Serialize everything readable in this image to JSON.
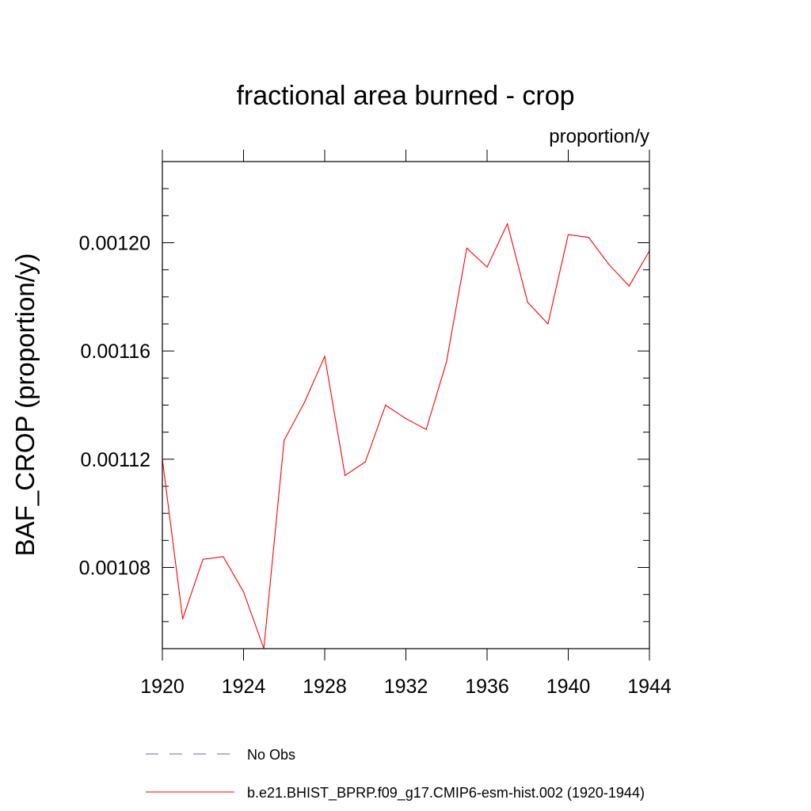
{
  "chart_data": {
    "type": "line",
    "title": "fractional area burned - crop",
    "units_label": "proportion/y",
    "ylabel": "BAF_CROP  (proportion/y)",
    "xlabel": "",
    "xlim": [
      1920,
      1944
    ],
    "ylim": [
      0.00105,
      0.00123
    ],
    "x_ticks": [
      1920,
      1924,
      1928,
      1932,
      1936,
      1940,
      1944
    ],
    "x_tick_labels": [
      "1920",
      "1924",
      "1928",
      "1932",
      "1936",
      "1940",
      "1944"
    ],
    "y_ticks": [
      0.00108,
      0.00112,
      0.00116,
      0.0012
    ],
    "y_tick_labels": [
      "0.00108",
      "0.00112",
      "0.00116",
      "0.00120"
    ],
    "series": [
      {
        "name": "b.e21.BHIST_BPRP.f09_g17.CMIP6-esm-hist.002 (1920-1944)",
        "color": "#ff0000",
        "dash": "solid",
        "x": [
          1920,
          1921,
          1922,
          1923,
          1924,
          1925,
          1926,
          1927,
          1928,
          1929,
          1930,
          1931,
          1932,
          1933,
          1934,
          1935,
          1936,
          1937,
          1938,
          1939,
          1940,
          1941,
          1942,
          1943,
          1944
        ],
        "values": [
          0.00112,
          0.001061,
          0.001083,
          0.001084,
          0.001071,
          0.00105,
          0.001127,
          0.001141,
          0.001158,
          0.001114,
          0.001119,
          0.00114,
          0.001135,
          0.001131,
          0.001156,
          0.001198,
          0.001191,
          0.001207,
          0.001178,
          0.00117,
          0.001203,
          0.001202,
          0.001192,
          0.001184,
          0.001197
        ]
      }
    ],
    "legend": [
      {
        "label": "No Obs",
        "color": "#6666cc",
        "dash": "dashed"
      },
      {
        "label": "b.e21.BHIST_BPRP.f09_g17.CMIP6-esm-hist.002 (1920-1944)",
        "color": "#ff0000",
        "dash": "solid"
      }
    ],
    "legend_position": "bottom",
    "grid": false
  }
}
